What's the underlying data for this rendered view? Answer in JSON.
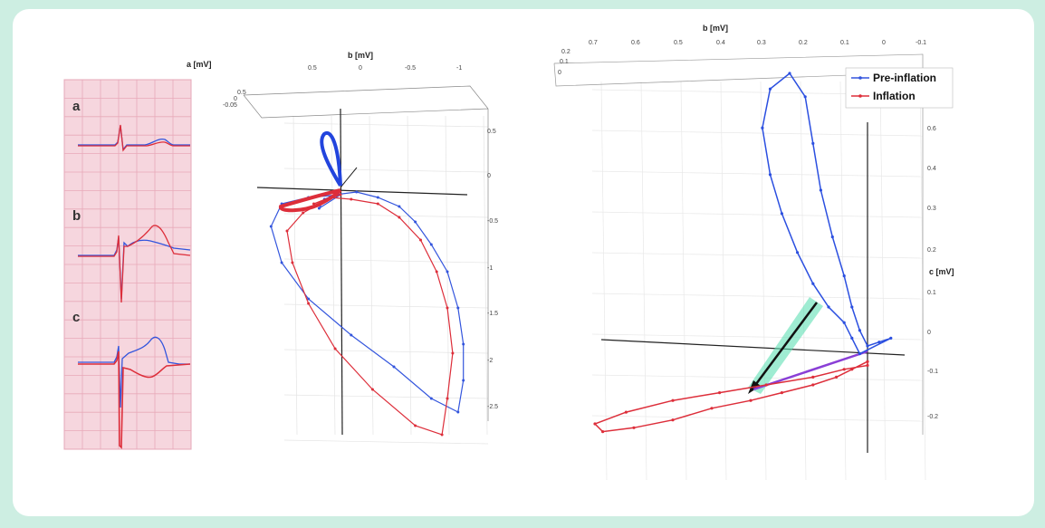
{
  "colors": {
    "background": "#cdeee2",
    "card": "#ffffff",
    "pre_inflation": "#3355dd",
    "inflation": "#dd2e3a",
    "ecg_paper": "#f6d6de",
    "ecg_grid": "#e8a9b9",
    "arrow_band": "#5fe0b4",
    "arrow_vector": "#8a3fd6"
  },
  "chart_data": [
    {
      "type": "line",
      "panel": "ecg-strips",
      "rows": [
        {
          "label": "a"
        },
        {
          "label": "b"
        },
        {
          "label": "c"
        }
      ],
      "series": [
        {
          "color": "#3355dd"
        },
        {
          "color": "#dd2e3a"
        }
      ]
    },
    {
      "type": "line",
      "panel": "3d-loop-left",
      "xlabel": "b [mV]",
      "ylabel": "a [mV]",
      "b_ticks": [
        "0.5",
        "0",
        "-0.5",
        "-1"
      ],
      "a_ticks": [
        "0.5",
        "0",
        "-0.05"
      ],
      "c_ticks": [
        "0.5",
        "0",
        "-0.5",
        "-1",
        "-1.5",
        "-2",
        "-2.5"
      ],
      "series": [
        {
          "color": "#3355dd",
          "points_bc": [
            [
              0.2,
              -0.2
            ],
            [
              0.15,
              -0.1
            ],
            [
              0.05,
              -0.05
            ],
            [
              -0.15,
              -0.02
            ],
            [
              -0.35,
              -0.08
            ],
            [
              -0.55,
              -0.18
            ],
            [
              -0.7,
              -0.35
            ],
            [
              -0.85,
              -0.6
            ],
            [
              -1.0,
              -0.9
            ],
            [
              -1.1,
              -1.3
            ],
            [
              -1.15,
              -1.7
            ],
            [
              -1.15,
              -2.1
            ],
            [
              -1.1,
              -2.45
            ],
            [
              -0.85,
              -2.3
            ],
            [
              -0.5,
              -1.95
            ],
            [
              -0.1,
              -1.6
            ],
            [
              0.3,
              -1.2
            ],
            [
              0.55,
              -0.8
            ],
            [
              0.65,
              -0.4
            ],
            [
              0.55,
              -0.15
            ],
            [
              0.3,
              -0.08
            ],
            [
              0.0,
              -0.05
            ]
          ]
        },
        {
          "color": "#dd2e3a",
          "points_bc": [
            [
              0.25,
              -0.15
            ],
            [
              0.1,
              -0.08
            ],
            [
              -0.1,
              -0.1
            ],
            [
              -0.35,
              -0.15
            ],
            [
              -0.55,
              -0.3
            ],
            [
              -0.75,
              -0.55
            ],
            [
              -0.9,
              -0.9
            ],
            [
              -1.0,
              -1.3
            ],
            [
              -1.05,
              -1.8
            ],
            [
              -1.0,
              -2.3
            ],
            [
              -0.95,
              -2.7
            ],
            [
              -0.7,
              -2.6
            ],
            [
              -0.3,
              -2.2
            ],
            [
              0.05,
              -1.75
            ],
            [
              0.3,
              -1.25
            ],
            [
              0.45,
              -0.8
            ],
            [
              0.5,
              -0.45
            ],
            [
              0.35,
              -0.25
            ],
            [
              0.15,
              -0.12
            ],
            [
              0.0,
              -0.05
            ]
          ]
        }
      ]
    },
    {
      "type": "line",
      "panel": "3d-loop-right",
      "xlabel": "b [mV]",
      "zlabel": "c [mV]",
      "b_ticks": [
        "0.7",
        "0.6",
        "0.5",
        "0.4",
        "0.3",
        "0.2",
        "0.1",
        "0",
        "-0.1"
      ],
      "a_ticks": [
        "0.2",
        "0.1",
        "0"
      ],
      "c_ticks": [
        "0.6",
        "0.4",
        "0.3",
        "0.2",
        "0.1",
        "0",
        "-0.1",
        "-0.2"
      ],
      "legend": [
        "Pre-inflation",
        "Inflation"
      ],
      "legend_position": "top-right",
      "series": [
        {
          "name": "Pre-inflation",
          "color": "#3355dd",
          "points_bc": [
            [
              0.02,
              -0.02
            ],
            [
              0.04,
              0.02
            ],
            [
              0.06,
              0.06
            ],
            [
              0.1,
              0.1
            ],
            [
              0.14,
              0.16
            ],
            [
              0.18,
              0.24
            ],
            [
              0.22,
              0.34
            ],
            [
              0.25,
              0.44
            ],
            [
              0.27,
              0.56
            ],
            [
              0.25,
              0.66
            ],
            [
              0.2,
              0.7
            ],
            [
              0.16,
              0.64
            ],
            [
              0.14,
              0.52
            ],
            [
              0.12,
              0.4
            ],
            [
              0.09,
              0.28
            ],
            [
              0.06,
              0.18
            ],
            [
              0.04,
              0.1
            ],
            [
              0.02,
              0.04
            ],
            [
              0.0,
              0.0
            ],
            [
              -0.03,
              0.01
            ],
            [
              -0.06,
              0.02
            ]
          ]
        },
        {
          "name": "Inflation",
          "color": "#dd2e3a",
          "points_bc": [
            [
              0.0,
              -0.04
            ],
            [
              0.04,
              -0.06
            ],
            [
              0.08,
              -0.08
            ],
            [
              0.14,
              -0.1
            ],
            [
              0.22,
              -0.12
            ],
            [
              0.3,
              -0.14
            ],
            [
              0.4,
              -0.16
            ],
            [
              0.5,
              -0.19
            ],
            [
              0.6,
              -0.21
            ],
            [
              0.68,
              -0.22
            ],
            [
              0.7,
              -0.2
            ],
            [
              0.62,
              -0.17
            ],
            [
              0.5,
              -0.14
            ],
            [
              0.38,
              -0.12
            ],
            [
              0.26,
              -0.1
            ],
            [
              0.14,
              -0.08
            ],
            [
              0.06,
              -0.06
            ],
            [
              0.0,
              -0.05
            ]
          ]
        }
      ]
    }
  ]
}
